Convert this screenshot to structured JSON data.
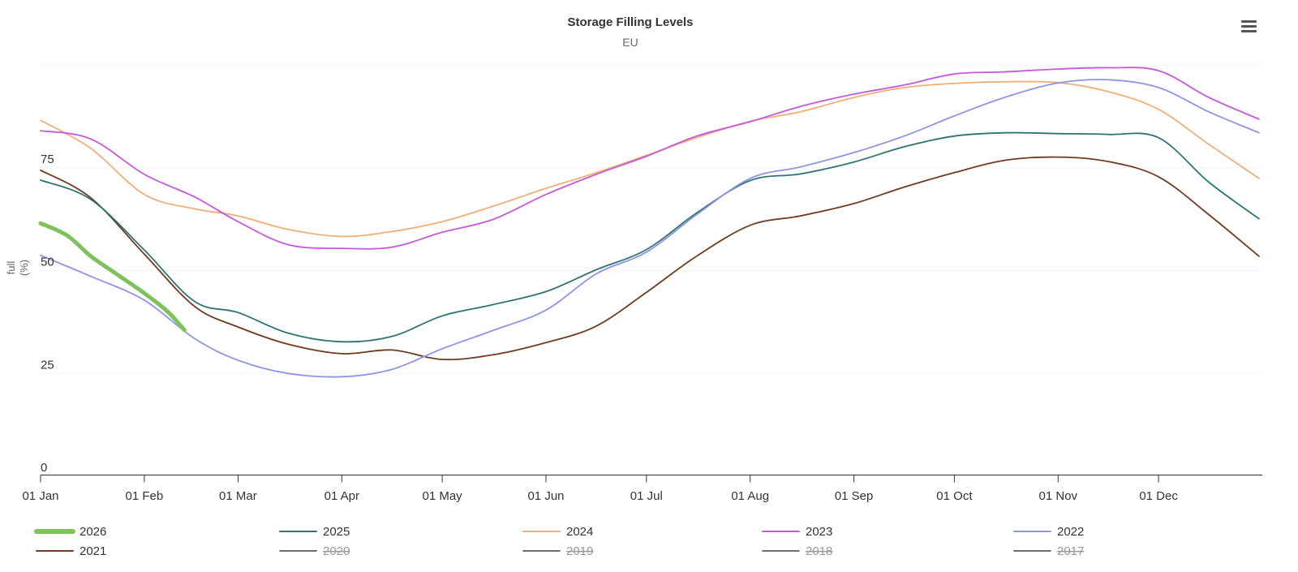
{
  "chart": {
    "title": "Storage Filling Levels",
    "subtitle": "EU",
    "context_menu_icon": "hamburger-menu",
    "colors": {
      "title": "#333333",
      "subtitle": "#666666",
      "axis_line": "#333333",
      "gridline": "#d9d9d9",
      "disabled_legend_text": "#9a9a9a",
      "disabled_legend_marker": "#3a3d4d",
      "background": "#ffffff"
    }
  },
  "chart_data": {
    "type": "line",
    "title": "Storage Filling Levels",
    "subtitle": "EU",
    "xlabel": "",
    "ylabel": "full (%)",
    "ylabel_lines": [
      "full",
      "(%)"
    ],
    "ylim": [
      0,
      105
    ],
    "x_unit": "day_of_year",
    "grid": "horizontal-dotted",
    "legend_position": "bottom",
    "y_axis": {
      "ticks": [
        {
          "value": 0,
          "label": "0"
        },
        {
          "value": 25,
          "label": "25"
        },
        {
          "value": 50,
          "label": "50"
        },
        {
          "value": 75,
          "label": "75"
        }
      ],
      "gridline_values": [
        25,
        50,
        75,
        100
      ]
    },
    "x_axis": {
      "ticks": [
        {
          "day": 0,
          "label": "01 Jan"
        },
        {
          "day": 31,
          "label": "01 Feb"
        },
        {
          "day": 59,
          "label": "01 Mar"
        },
        {
          "day": 90,
          "label": "01 Apr"
        },
        {
          "day": 120,
          "label": "01 May"
        },
        {
          "day": 151,
          "label": "01 Jun"
        },
        {
          "day": 181,
          "label": "01 Jul"
        },
        {
          "day": 212,
          "label": "01 Aug"
        },
        {
          "day": 243,
          "label": "01 Sep"
        },
        {
          "day": 273,
          "label": "01 Oct"
        },
        {
          "day": 304,
          "label": "01 Nov"
        },
        {
          "day": 334,
          "label": "01 Dec"
        }
      ]
    },
    "series": [
      {
        "name": "2021",
        "color": "#6f3a20",
        "width": 1.8,
        "visible": true,
        "x": [
          0,
          15,
          31,
          46,
          59,
          74,
          90,
          105,
          120,
          135,
          151,
          166,
          181,
          196,
          212,
          227,
          243,
          258,
          273,
          288,
          304,
          319,
          334,
          349,
          364
        ],
        "values": [
          74.4,
          67.7,
          54,
          41.3,
          36.3,
          32.1,
          29.8,
          30.7,
          28.4,
          29.5,
          32.5,
          36.5,
          44.7,
          53.5,
          61,
          63.3,
          66.3,
          70.3,
          73.8,
          76.8,
          77.6,
          76.5,
          72.8,
          63.6,
          53.5
        ]
      },
      {
        "name": "2024",
        "color": "#f2ae78",
        "width": 1.8,
        "visible": true,
        "x": [
          0,
          15,
          31,
          46,
          59,
          74,
          90,
          105,
          120,
          135,
          151,
          166,
          181,
          196,
          212,
          227,
          243,
          258,
          273,
          288,
          304,
          319,
          334,
          349,
          364
        ],
        "values": [
          86.5,
          79.7,
          68.5,
          65,
          63.3,
          60,
          58.3,
          59.5,
          61.9,
          65.6,
          70,
          73.8,
          78,
          82.3,
          86.3,
          88.6,
          92.1,
          94.5,
          95.5,
          95.9,
          95.7,
          93.5,
          89.2,
          80.7,
          72.4
        ]
      },
      {
        "name": "2023",
        "color": "#c558dd",
        "width": 1.8,
        "visible": true,
        "x": [
          0,
          15,
          31,
          46,
          59,
          74,
          90,
          105,
          120,
          135,
          151,
          166,
          181,
          196,
          212,
          227,
          243,
          258,
          273,
          288,
          304,
          319,
          334,
          349,
          364
        ],
        "values": [
          84,
          82,
          73.4,
          67.9,
          61.9,
          56.3,
          55.4,
          55.7,
          59.3,
          62.4,
          68.5,
          73.4,
          77.8,
          82.7,
          86.2,
          89.9,
          92.9,
          95.1,
          97.8,
          98.3,
          99,
          99.3,
          98.6,
          92.1,
          86.8
        ]
      },
      {
        "name": "2025",
        "color": "#2c7472",
        "width": 1.8,
        "visible": true,
        "x": [
          0,
          15,
          31,
          46,
          59,
          74,
          90,
          105,
          120,
          135,
          151,
          166,
          181,
          196,
          212,
          227,
          243,
          258,
          273,
          288,
          304,
          319,
          334,
          349,
          364
        ],
        "values": [
          72,
          67.3,
          55,
          42.5,
          39.8,
          34.8,
          32.7,
          34,
          39,
          41.7,
          44.9,
          50.2,
          55.1,
          64,
          71.9,
          73.5,
          76.4,
          80.1,
          82.7,
          83.5,
          83.3,
          83.1,
          82.3,
          71.5,
          62.6
        ]
      },
      {
        "name": "2022",
        "color": "#8f94e6",
        "width": 1.8,
        "visible": true,
        "x": [
          0,
          15,
          31,
          46,
          59,
          74,
          90,
          105,
          120,
          135,
          151,
          166,
          181,
          196,
          212,
          227,
          243,
          258,
          273,
          288,
          304,
          319,
          334,
          349,
          364
        ],
        "values": [
          53.7,
          48.6,
          42.8,
          33.5,
          28.2,
          25,
          24.2,
          26,
          31,
          35.4,
          40.4,
          49.2,
          54.5,
          63.6,
          72.4,
          75.2,
          78.7,
          82.7,
          87.6,
          92.1,
          95.6,
          96.4,
          94.5,
          88.6,
          83.5
        ]
      },
      {
        "name": "2026",
        "color": "#7fc25b",
        "width": 5,
        "visible": true,
        "x": [
          0,
          8,
          15,
          23,
          31,
          38,
          43
        ],
        "values": [
          61.5,
          58.5,
          53.5,
          49,
          44.5,
          40,
          35.5
        ]
      },
      {
        "name": "2020",
        "color": "#3a3d4d",
        "width": 1.5,
        "visible": false,
        "x": [],
        "values": []
      },
      {
        "name": "2019",
        "color": "#3a3d4d",
        "width": 1.5,
        "visible": false,
        "x": [],
        "values": []
      },
      {
        "name": "2018",
        "color": "#3a3d4d",
        "width": 1.5,
        "visible": false,
        "x": [],
        "values": []
      },
      {
        "name": "2017",
        "color": "#3a3d4d",
        "width": 1.5,
        "visible": false,
        "x": [],
        "values": []
      }
    ],
    "legend": {
      "items": [
        {
          "label": "2026",
          "color": "#7fc25b",
          "marker_width": 6,
          "disabled": false
        },
        {
          "label": "2025",
          "color": "#2c7472",
          "marker_width": 2,
          "disabled": false
        },
        {
          "label": "2024",
          "color": "#f2ae78",
          "marker_width": 2,
          "disabled": false
        },
        {
          "label": "2023",
          "color": "#c558dd",
          "marker_width": 2,
          "disabled": false
        },
        {
          "label": "2022",
          "color": "#8f94e6",
          "marker_width": 2,
          "disabled": false
        },
        {
          "label": "2021",
          "color": "#6f3a20",
          "marker_width": 2,
          "disabled": false
        },
        {
          "label": "2020",
          "color": "#3a3d4d",
          "marker_width": 1.5,
          "disabled": true
        },
        {
          "label": "2019",
          "color": "#3a3d4d",
          "marker_width": 1.5,
          "disabled": true
        },
        {
          "label": "2018",
          "color": "#3a3d4d",
          "marker_width": 1.5,
          "disabled": true
        },
        {
          "label": "2017",
          "color": "#3a3d4d",
          "marker_width": 1.5,
          "disabled": true
        }
      ]
    }
  }
}
